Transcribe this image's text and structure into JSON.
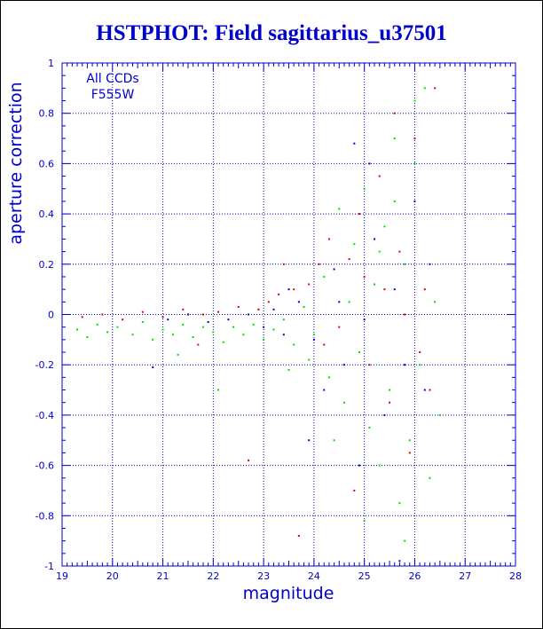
{
  "chart_data": {
    "type": "scatter",
    "title": "HSTPHOT: Field sagittarius_u37501",
    "xlabel": "magnitude",
    "ylabel": "aperture correction",
    "xlim": [
      19,
      28
    ],
    "ylim": [
      -1,
      1
    ],
    "xticks": [
      "19",
      "20",
      "21",
      "22",
      "23",
      "24",
      "25",
      "26",
      "27",
      "28"
    ],
    "yticks": [
      "-1",
      "-0.8",
      "-0.6",
      "-0.4",
      "-0.2",
      "0",
      "0.2",
      "0.4",
      "0.6",
      "0.8",
      "1"
    ],
    "annotations": [
      "All CCDs",
      "F555W"
    ],
    "grid": true,
    "series": [
      {
        "color": "#00dd00",
        "points": [
          [
            19.3,
            -0.06
          ],
          [
            19.5,
            -0.09
          ],
          [
            19.7,
            -0.04
          ],
          [
            19.9,
            -0.07
          ],
          [
            20.1,
            -0.05
          ],
          [
            20.4,
            -0.08
          ],
          [
            20.6,
            -0.03
          ],
          [
            20.8,
            -0.1
          ],
          [
            21.0,
            -0.06
          ],
          [
            21.2,
            -0.08
          ],
          [
            21.4,
            -0.04
          ],
          [
            21.6,
            -0.09
          ],
          [
            21.8,
            -0.05
          ],
          [
            22.0,
            -0.07
          ],
          [
            22.2,
            -0.11
          ],
          [
            22.4,
            -0.05
          ],
          [
            22.6,
            -0.08
          ],
          [
            22.8,
            -0.04
          ],
          [
            23.0,
            -0.1
          ],
          [
            23.2,
            -0.06
          ],
          [
            23.4,
            -0.02
          ],
          [
            23.6,
            -0.12
          ],
          [
            23.8,
            0.03
          ],
          [
            24.0,
            -0.08
          ],
          [
            24.2,
            0.15
          ],
          [
            24.3,
            -0.25
          ],
          [
            24.5,
            0.42
          ],
          [
            24.6,
            -0.35
          ],
          [
            24.8,
            0.28
          ],
          [
            24.9,
            -0.15
          ],
          [
            25.0,
            0.5
          ],
          [
            25.1,
            -0.45
          ],
          [
            25.2,
            0.12
          ],
          [
            25.3,
            -0.6
          ],
          [
            25.4,
            0.35
          ],
          [
            25.5,
            -0.3
          ],
          [
            25.6,
            0.7
          ],
          [
            25.7,
            -0.75
          ],
          [
            25.8,
            0.2
          ],
          [
            25.9,
            -0.5
          ],
          [
            26.0,
            0.85
          ],
          [
            26.1,
            -0.2
          ],
          [
            26.2,
            0.9
          ],
          [
            26.3,
            -0.65
          ],
          [
            26.4,
            0.05
          ],
          [
            26.5,
            -0.4
          ],
          [
            21.3,
            -0.16
          ],
          [
            22.1,
            -0.3
          ],
          [
            23.5,
            -0.22
          ],
          [
            24.7,
            0.05
          ],
          [
            25.3,
            0.25
          ],
          [
            25.8,
            -0.9
          ],
          [
            26.0,
            0.6
          ],
          [
            24.4,
            -0.5
          ],
          [
            25.6,
            0.45
          ],
          [
            22.9,
            0.02
          ],
          [
            23.9,
            -0.18
          ],
          [
            25.0,
            -0.82
          ]
        ]
      },
      {
        "color": "#dd0000",
        "points": [
          [
            19.4,
            -0.01
          ],
          [
            19.8,
            0.0
          ],
          [
            20.2,
            -0.02
          ],
          [
            20.6,
            0.01
          ],
          [
            21.0,
            -0.01
          ],
          [
            21.4,
            0.02
          ],
          [
            21.8,
            0.0
          ],
          [
            22.1,
            0.01
          ],
          [
            22.5,
            0.03
          ],
          [
            22.9,
            0.02
          ],
          [
            23.1,
            0.05
          ],
          [
            23.3,
            0.08
          ],
          [
            23.6,
            0.1
          ],
          [
            23.9,
            0.12
          ],
          [
            24.1,
            0.2
          ],
          [
            24.3,
            0.3
          ],
          [
            24.5,
            -0.05
          ],
          [
            24.7,
            0.22
          ],
          [
            24.9,
            0.4
          ],
          [
            25.1,
            -0.2
          ],
          [
            25.3,
            0.55
          ],
          [
            25.5,
            -0.35
          ],
          [
            25.7,
            0.25
          ],
          [
            25.9,
            -0.55
          ],
          [
            26.0,
            0.7
          ],
          [
            26.2,
            0.1
          ],
          [
            26.3,
            -0.3
          ],
          [
            26.4,
            0.9
          ],
          [
            21.7,
            -0.12
          ],
          [
            22.7,
            -0.58
          ],
          [
            23.7,
            -0.88
          ],
          [
            24.8,
            -0.7
          ],
          [
            25.4,
            0.1
          ],
          [
            25.6,
            0.8
          ],
          [
            26.1,
            -0.15
          ],
          [
            23.4,
            0.2
          ],
          [
            24.2,
            -0.12
          ],
          [
            25.0,
            0.15
          ],
          [
            25.8,
            0.0
          ]
        ]
      },
      {
        "color": "#0000cc",
        "points": [
          [
            20.8,
            -0.21
          ],
          [
            21.1,
            -0.02
          ],
          [
            21.5,
            0.0
          ],
          [
            21.9,
            -0.03
          ],
          [
            22.3,
            -0.02
          ],
          [
            22.7,
            0.0
          ],
          [
            23.0,
            -0.05
          ],
          [
            23.2,
            0.02
          ],
          [
            23.4,
            -0.08
          ],
          [
            23.7,
            0.05
          ],
          [
            24.0,
            -0.1
          ],
          [
            24.2,
            -0.3
          ],
          [
            24.4,
            0.18
          ],
          [
            24.6,
            -0.2
          ],
          [
            24.8,
            0.68
          ],
          [
            25.0,
            -0.02
          ],
          [
            25.2,
            0.3
          ],
          [
            25.4,
            -0.4
          ],
          [
            25.6,
            0.1
          ],
          [
            25.8,
            -0.2
          ],
          [
            26.0,
            0.45
          ],
          [
            26.2,
            -0.3
          ],
          [
            26.3,
            0.2
          ],
          [
            23.9,
            -0.5
          ],
          [
            24.9,
            -0.6
          ],
          [
            25.7,
            -0.98
          ],
          [
            25.1,
            0.6
          ],
          [
            23.5,
            0.1
          ],
          [
            24.5,
            0.05
          ]
        ]
      }
    ]
  }
}
